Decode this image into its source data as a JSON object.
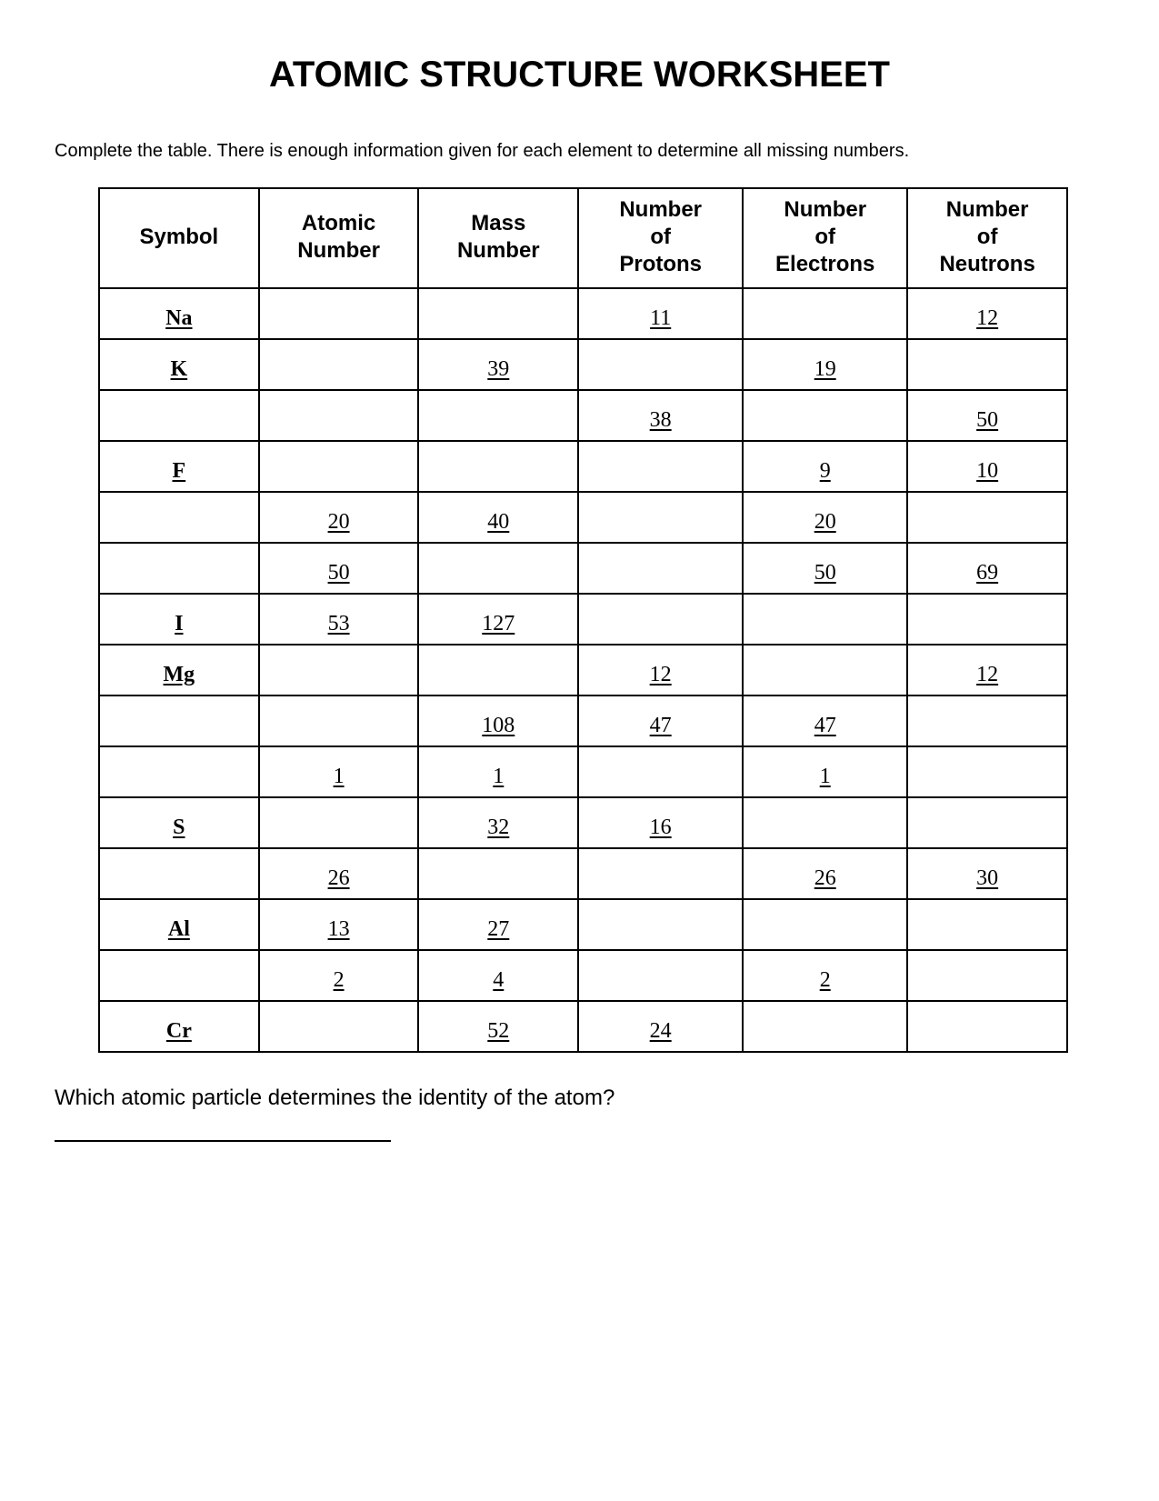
{
  "title": "ATOMIC STRUCTURE WORKSHEET",
  "instructions": "Complete the table.  There is enough information given for each element to determine all missing numbers.",
  "table": {
    "columns": [
      "Symbol",
      "Atomic Number",
      "Mass Number",
      "Number of Protons",
      "Number of Electrons",
      "Number of Neutrons"
    ],
    "column_widths_pct": [
      16.5,
      16.5,
      16.5,
      17,
      17,
      16.5
    ],
    "header_fontsize": 24,
    "cell_fontsize": 24,
    "border_color": "#000000",
    "rows": [
      {
        "symbol": "Na",
        "atomic": "",
        "mass": "",
        "protons": "11",
        "electrons": "",
        "neutrons": "12"
      },
      {
        "symbol": "K",
        "atomic": "",
        "mass": "39",
        "protons": "",
        "electrons": "19",
        "neutrons": ""
      },
      {
        "symbol": "",
        "atomic": "",
        "mass": "",
        "protons": "38",
        "electrons": "",
        "neutrons": "50"
      },
      {
        "symbol": "F",
        "atomic": "",
        "mass": "",
        "protons": "",
        "electrons": "9",
        "neutrons": "10"
      },
      {
        "symbol": "",
        "atomic": "20",
        "mass": "40",
        "protons": "",
        "electrons": "20",
        "neutrons": ""
      },
      {
        "symbol": "",
        "atomic": "50",
        "mass": "",
        "protons": "",
        "electrons": "50",
        "neutrons": "69"
      },
      {
        "symbol": "I",
        "atomic": "53",
        "mass": "127",
        "protons": "",
        "electrons": "",
        "neutrons": ""
      },
      {
        "symbol": "Mg",
        "atomic": "",
        "mass": "",
        "protons": "12",
        "electrons": "",
        "neutrons": "12"
      },
      {
        "symbol": "",
        "atomic": "",
        "mass": "108",
        "protons": "47",
        "electrons": "47",
        "neutrons": ""
      },
      {
        "symbol": "",
        "atomic": "1",
        "mass": "1",
        "protons": "",
        "electrons": "1",
        "neutrons": ""
      },
      {
        "symbol": "S",
        "atomic": "",
        "mass": "32",
        "protons": "16",
        "electrons": "",
        "neutrons": ""
      },
      {
        "symbol": "",
        "atomic": "26",
        "mass": "",
        "protons": "",
        "electrons": "26",
        "neutrons": "30"
      },
      {
        "symbol": "Al",
        "atomic": "13",
        "mass": "27",
        "protons": "",
        "electrons": "",
        "neutrons": ""
      },
      {
        "symbol": "",
        "atomic": "2",
        "mass": "4",
        "protons": "",
        "electrons": "2",
        "neutrons": ""
      },
      {
        "symbol": "Cr",
        "atomic": "",
        "mass": "52",
        "protons": "24",
        "electrons": "",
        "neutrons": ""
      }
    ]
  },
  "question": "Which atomic particle determines the identity of the atom?"
}
